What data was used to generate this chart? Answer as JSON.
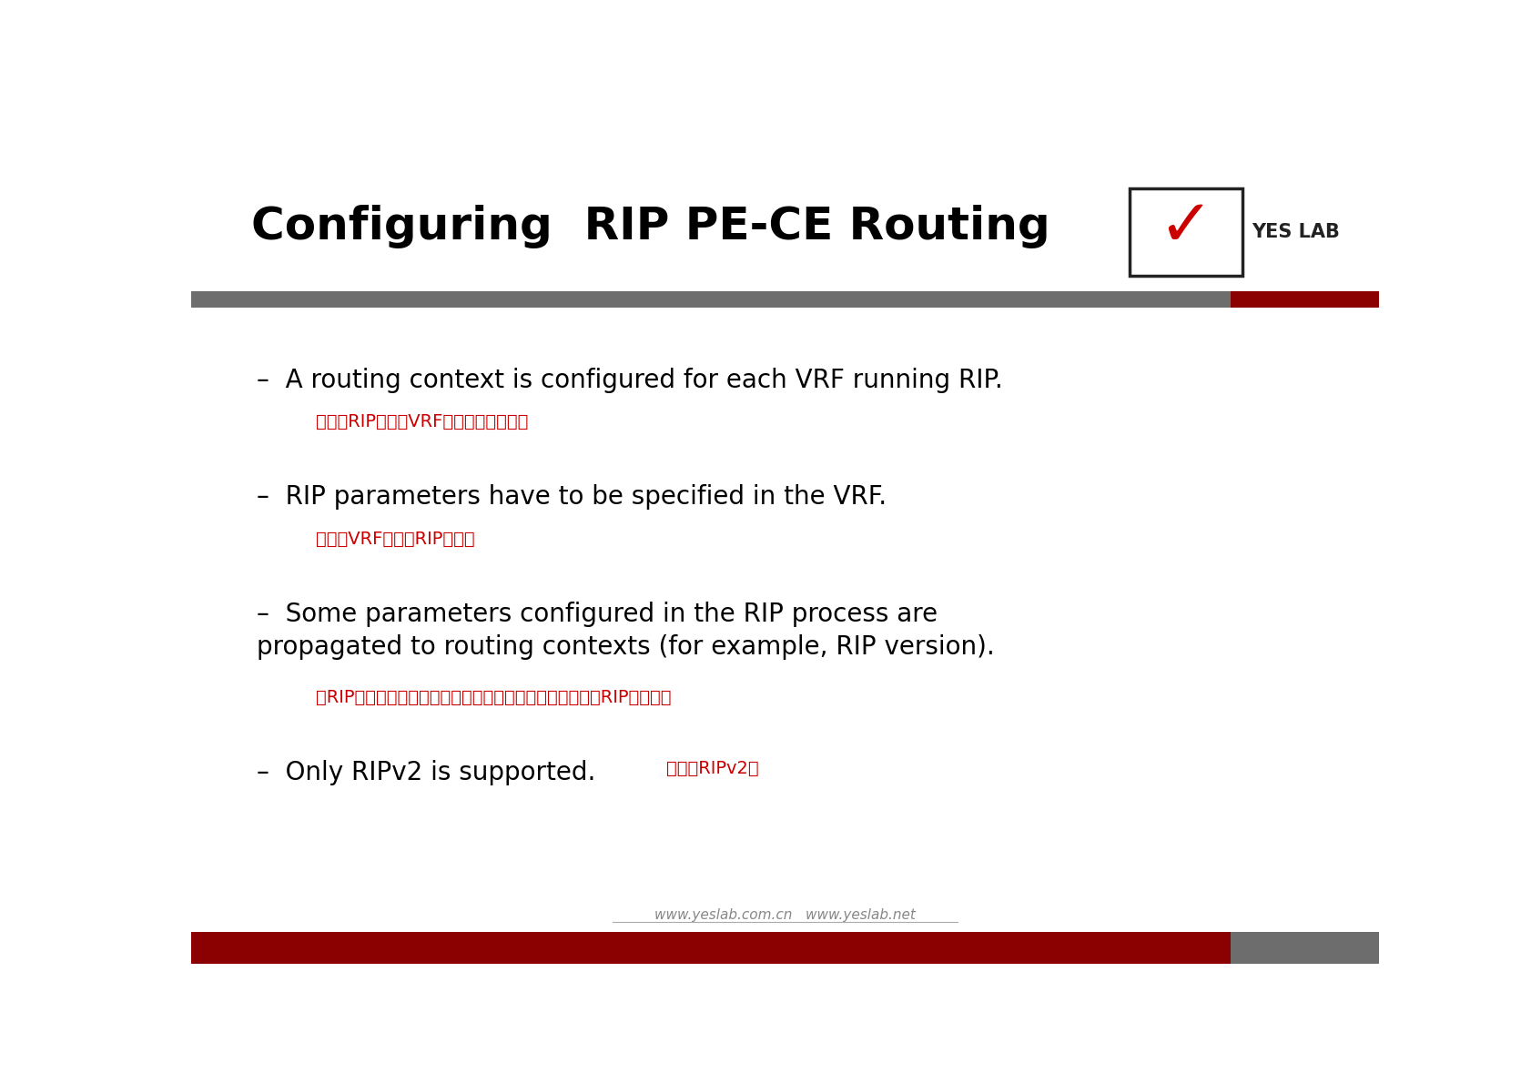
{
  "title": "Configuring  RIP PE-CE Routing",
  "title_fontsize": 36,
  "title_fontweight": "bold",
  "background_color": "#ffffff",
  "header_bar_color": "#6d6d6d",
  "header_bar_red_color": "#8b0000",
  "footer_bar_color": "#8b0000",
  "footer_bar_gray_color": "#6d6d6d",
  "red_text_color": "#cc0000",
  "footer_text": "www.yeslab.com.cn   www.yeslab.net",
  "bullets": [
    {
      "en": "A routing context is configured for each VRF running RIP.",
      "zh": "为运行RIP的每个VRF配置路由上下文。"
    },
    {
      "en": "RIP parameters have to be specified in the VRF.",
      "zh": "必须在VRF中指定RIP参数。"
    },
    {
      "en": "Some parameters configured in the RIP process are\npropagated to routing contexts (for example, RIP version).",
      "zh": "在RIP进程中配置的一些参数被传播到路由上下文（例如，RIP版本）。"
    },
    {
      "en": "Only RIPv2 is supported.",
      "zh": "只支持RIPv2。"
    }
  ]
}
